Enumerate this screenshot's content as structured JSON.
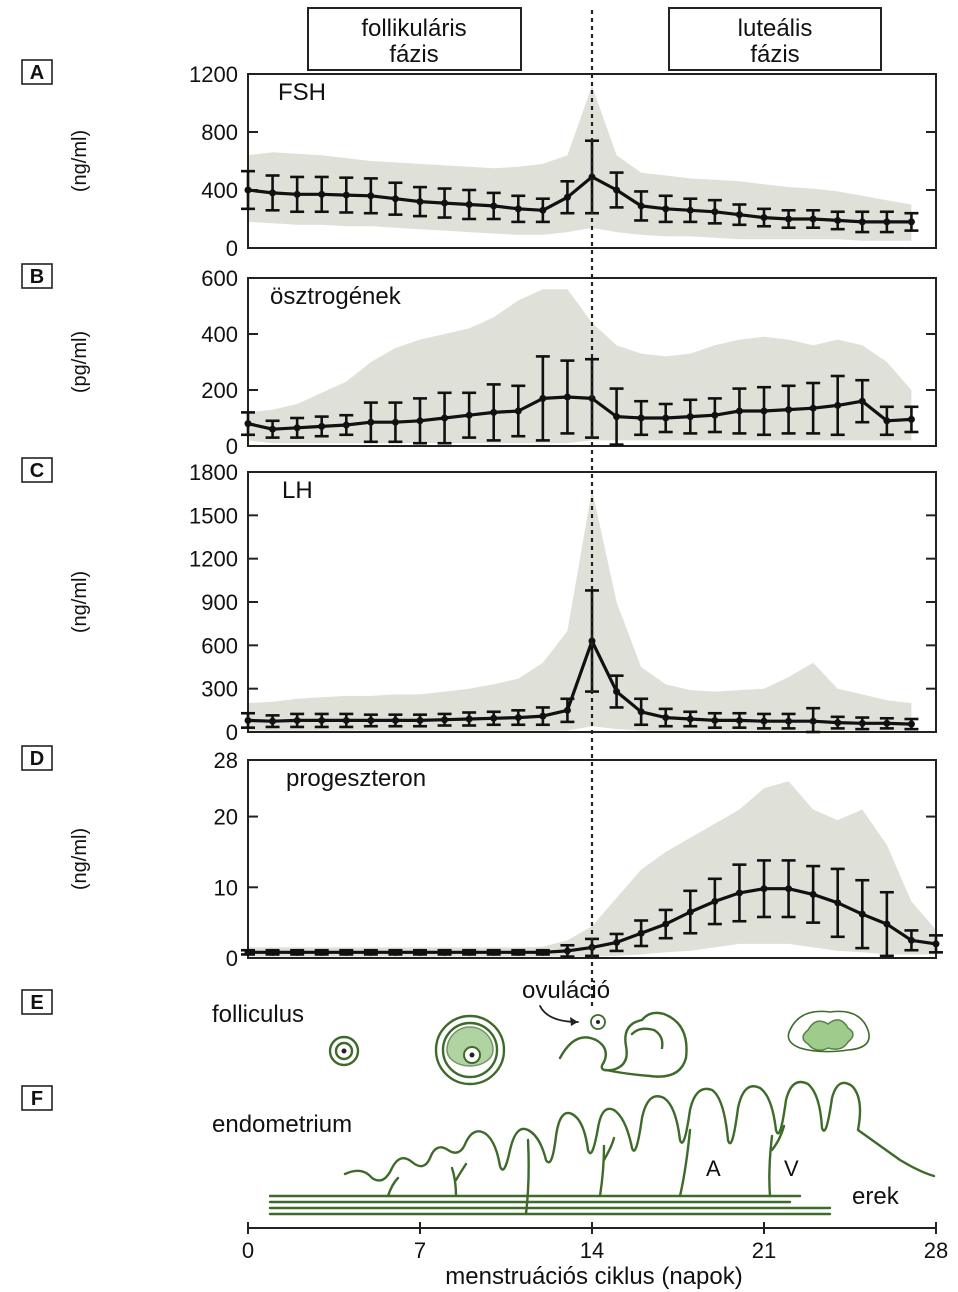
{
  "phases": {
    "follicular": [
      "follikuláris",
      "fázis"
    ],
    "luteal": [
      "luteális",
      "fázis"
    ]
  },
  "x_axis": {
    "label": "menstruációs ciklus (napok)",
    "ticks": [
      "0",
      "7",
      "14",
      "21",
      "28"
    ],
    "range": [
      0,
      28
    ]
  },
  "ovulation_day": 14,
  "panel_E": {
    "letter": "E",
    "label_follicle": "folliculus",
    "label_ovulation": "ovuláció"
  },
  "panel_F": {
    "letter": "F",
    "label_endometrium": "endometrium",
    "label_vessels": "erek",
    "label_A": "A",
    "label_V": "V"
  },
  "chart_data": [
    {
      "type": "line",
      "panel": "A",
      "title": "FSH",
      "ylabel": "(ng/ml)",
      "ylim": [
        0,
        1200
      ],
      "yticks": [
        "0",
        "400",
        "800",
        "1200"
      ],
      "x": [
        0,
        1,
        2,
        3,
        4,
        5,
        6,
        7,
        8,
        9,
        10,
        11,
        12,
        13,
        14,
        15,
        16,
        17,
        18,
        19,
        20,
        21,
        22,
        23,
        24,
        25,
        26,
        27
      ],
      "mean": [
        400,
        380,
        370,
        370,
        365,
        360,
        340,
        320,
        310,
        300,
        290,
        270,
        260,
        350,
        490,
        400,
        290,
        270,
        260,
        250,
        230,
        210,
        200,
        200,
        190,
        180,
        180,
        180
      ],
      "error": [
        130,
        120,
        120,
        120,
        120,
        120,
        110,
        100,
        100,
        100,
        90,
        90,
        80,
        110,
        250,
        120,
        100,
        90,
        80,
        80,
        70,
        60,
        60,
        60,
        60,
        70,
        70,
        60
      ],
      "band_upper": [
        640,
        660,
        650,
        640,
        620,
        600,
        590,
        580,
        570,
        560,
        550,
        560,
        580,
        640,
        1120,
        640,
        520,
        500,
        480,
        470,
        460,
        440,
        420,
        410,
        390,
        360,
        330,
        300
      ],
      "band_lower": [
        180,
        170,
        160,
        160,
        150,
        150,
        140,
        130,
        120,
        110,
        100,
        90,
        90,
        110,
        140,
        110,
        90,
        80,
        80,
        70,
        60,
        60,
        60,
        60,
        60,
        50,
        50,
        50
      ]
    },
    {
      "type": "line",
      "panel": "B",
      "title": "ösztrogének",
      "ylabel": "(pg/ml)",
      "ylim": [
        0,
        600
      ],
      "yticks": [
        "0",
        "200",
        "400",
        "600"
      ],
      "x": [
        0,
        1,
        2,
        3,
        4,
        5,
        6,
        7,
        8,
        9,
        10,
        11,
        12,
        13,
        14,
        15,
        16,
        17,
        18,
        19,
        20,
        21,
        22,
        23,
        24,
        25,
        26,
        27
      ],
      "mean": [
        80,
        60,
        65,
        70,
        75,
        85,
        85,
        90,
        100,
        110,
        120,
        125,
        170,
        175,
        170,
        105,
        100,
        100,
        105,
        110,
        125,
        125,
        130,
        135,
        145,
        160,
        90,
        95
      ],
      "error": [
        40,
        30,
        35,
        35,
        35,
        70,
        70,
        80,
        90,
        80,
        100,
        90,
        150,
        130,
        140,
        100,
        60,
        50,
        60,
        60,
        80,
        85,
        85,
        90,
        105,
        75,
        50,
        45
      ],
      "band_upper": [
        120,
        130,
        150,
        190,
        230,
        300,
        350,
        380,
        400,
        420,
        460,
        520,
        560,
        560,
        440,
        360,
        330,
        320,
        330,
        360,
        380,
        390,
        380,
        360,
        380,
        360,
        300,
        200
      ],
      "band_lower": [
        20,
        10,
        10,
        10,
        10,
        10,
        10,
        10,
        10,
        10,
        10,
        10,
        10,
        10,
        20,
        20,
        20,
        20,
        20,
        20,
        20,
        20,
        20,
        20,
        20,
        20,
        20,
        20
      ]
    },
    {
      "type": "line",
      "panel": "C",
      "title": "LH",
      "ylabel": "(ng/ml)",
      "ylim": [
        0,
        1800
      ],
      "yticks": [
        "0",
        "300",
        "600",
        "900",
        "1200",
        "1500",
        "1800"
      ],
      "x": [
        0,
        1,
        2,
        3,
        4,
        5,
        6,
        7,
        8,
        9,
        10,
        11,
        12,
        13,
        14,
        15,
        16,
        17,
        18,
        19,
        20,
        21,
        22,
        23,
        24,
        25,
        26,
        27
      ],
      "mean": [
        80,
        75,
        80,
        80,
        80,
        80,
        80,
        80,
        85,
        90,
        95,
        100,
        110,
        150,
        630,
        280,
        140,
        100,
        90,
        80,
        80,
        75,
        75,
        75,
        65,
        60,
        60,
        55
      ],
      "error": [
        50,
        40,
        45,
        45,
        45,
        40,
        40,
        40,
        40,
        45,
        45,
        50,
        60,
        80,
        350,
        110,
        90,
        60,
        50,
        50,
        50,
        50,
        50,
        90,
        40,
        40,
        35,
        35
      ],
      "band_upper": [
        200,
        210,
        230,
        240,
        250,
        250,
        260,
        260,
        280,
        300,
        330,
        370,
        480,
        700,
        1680,
        900,
        450,
        330,
        290,
        280,
        290,
        300,
        380,
        480,
        300,
        260,
        220,
        200
      ],
      "band_lower": [
        10,
        10,
        10,
        10,
        10,
        10,
        10,
        10,
        10,
        10,
        10,
        10,
        10,
        10,
        40,
        20,
        10,
        10,
        10,
        10,
        10,
        10,
        10,
        10,
        10,
        10,
        10,
        10
      ]
    },
    {
      "type": "line",
      "panel": "D",
      "title": "progeszteron",
      "ylabel": "(ng/ml)",
      "ylim": [
        0,
        28
      ],
      "ymax_label": "28",
      "yticks": [
        "0",
        "10",
        "20",
        "28"
      ],
      "x": [
        0,
        1,
        2,
        3,
        4,
        5,
        6,
        7,
        8,
        9,
        10,
        11,
        12,
        13,
        14,
        15,
        16,
        17,
        18,
        19,
        20,
        21,
        22,
        23,
        24,
        25,
        26,
        27,
        28
      ],
      "mean": [
        0.8,
        0.8,
        0.8,
        0.8,
        0.8,
        0.8,
        0.8,
        0.8,
        0.8,
        0.8,
        0.8,
        0.8,
        0.8,
        1.0,
        1.5,
        2.2,
        3.5,
        4.8,
        6.5,
        8.0,
        9.2,
        9.8,
        9.8,
        9.0,
        7.8,
        6.2,
        4.8,
        2.5,
        2.0
      ],
      "error": [
        0.3,
        0.3,
        0.3,
        0.3,
        0.3,
        0.3,
        0.3,
        0.3,
        0.3,
        0.3,
        0.3,
        0.3,
        0.3,
        0.8,
        1.2,
        1.2,
        1.8,
        2.0,
        3.0,
        3.2,
        4.0,
        4.0,
        4.0,
        4.0,
        4.8,
        4.8,
        4.5,
        1.4,
        1.2
      ],
      "band_upper": [
        1.5,
        1.5,
        1.5,
        1.5,
        1.5,
        1.5,
        1.5,
        1.5,
        1.5,
        1.5,
        1.5,
        1.5,
        1.6,
        2.5,
        4.5,
        8.5,
        12.5,
        15.0,
        17.0,
        19.0,
        21.0,
        24.0,
        25.0,
        21.0,
        19.5,
        21.0,
        16.0,
        8.0,
        4.0
      ],
      "band_lower": [
        0.2,
        0.2,
        0.2,
        0.2,
        0.2,
        0.2,
        0.2,
        0.2,
        0.2,
        0.2,
        0.2,
        0.2,
        0.2,
        0.2,
        0.2,
        0.3,
        0.5,
        0.8,
        1.0,
        1.5,
        2.0,
        2.0,
        2.0,
        1.5,
        1.0,
        0.8,
        0.5,
        0.5,
        0.5
      ]
    }
  ]
}
